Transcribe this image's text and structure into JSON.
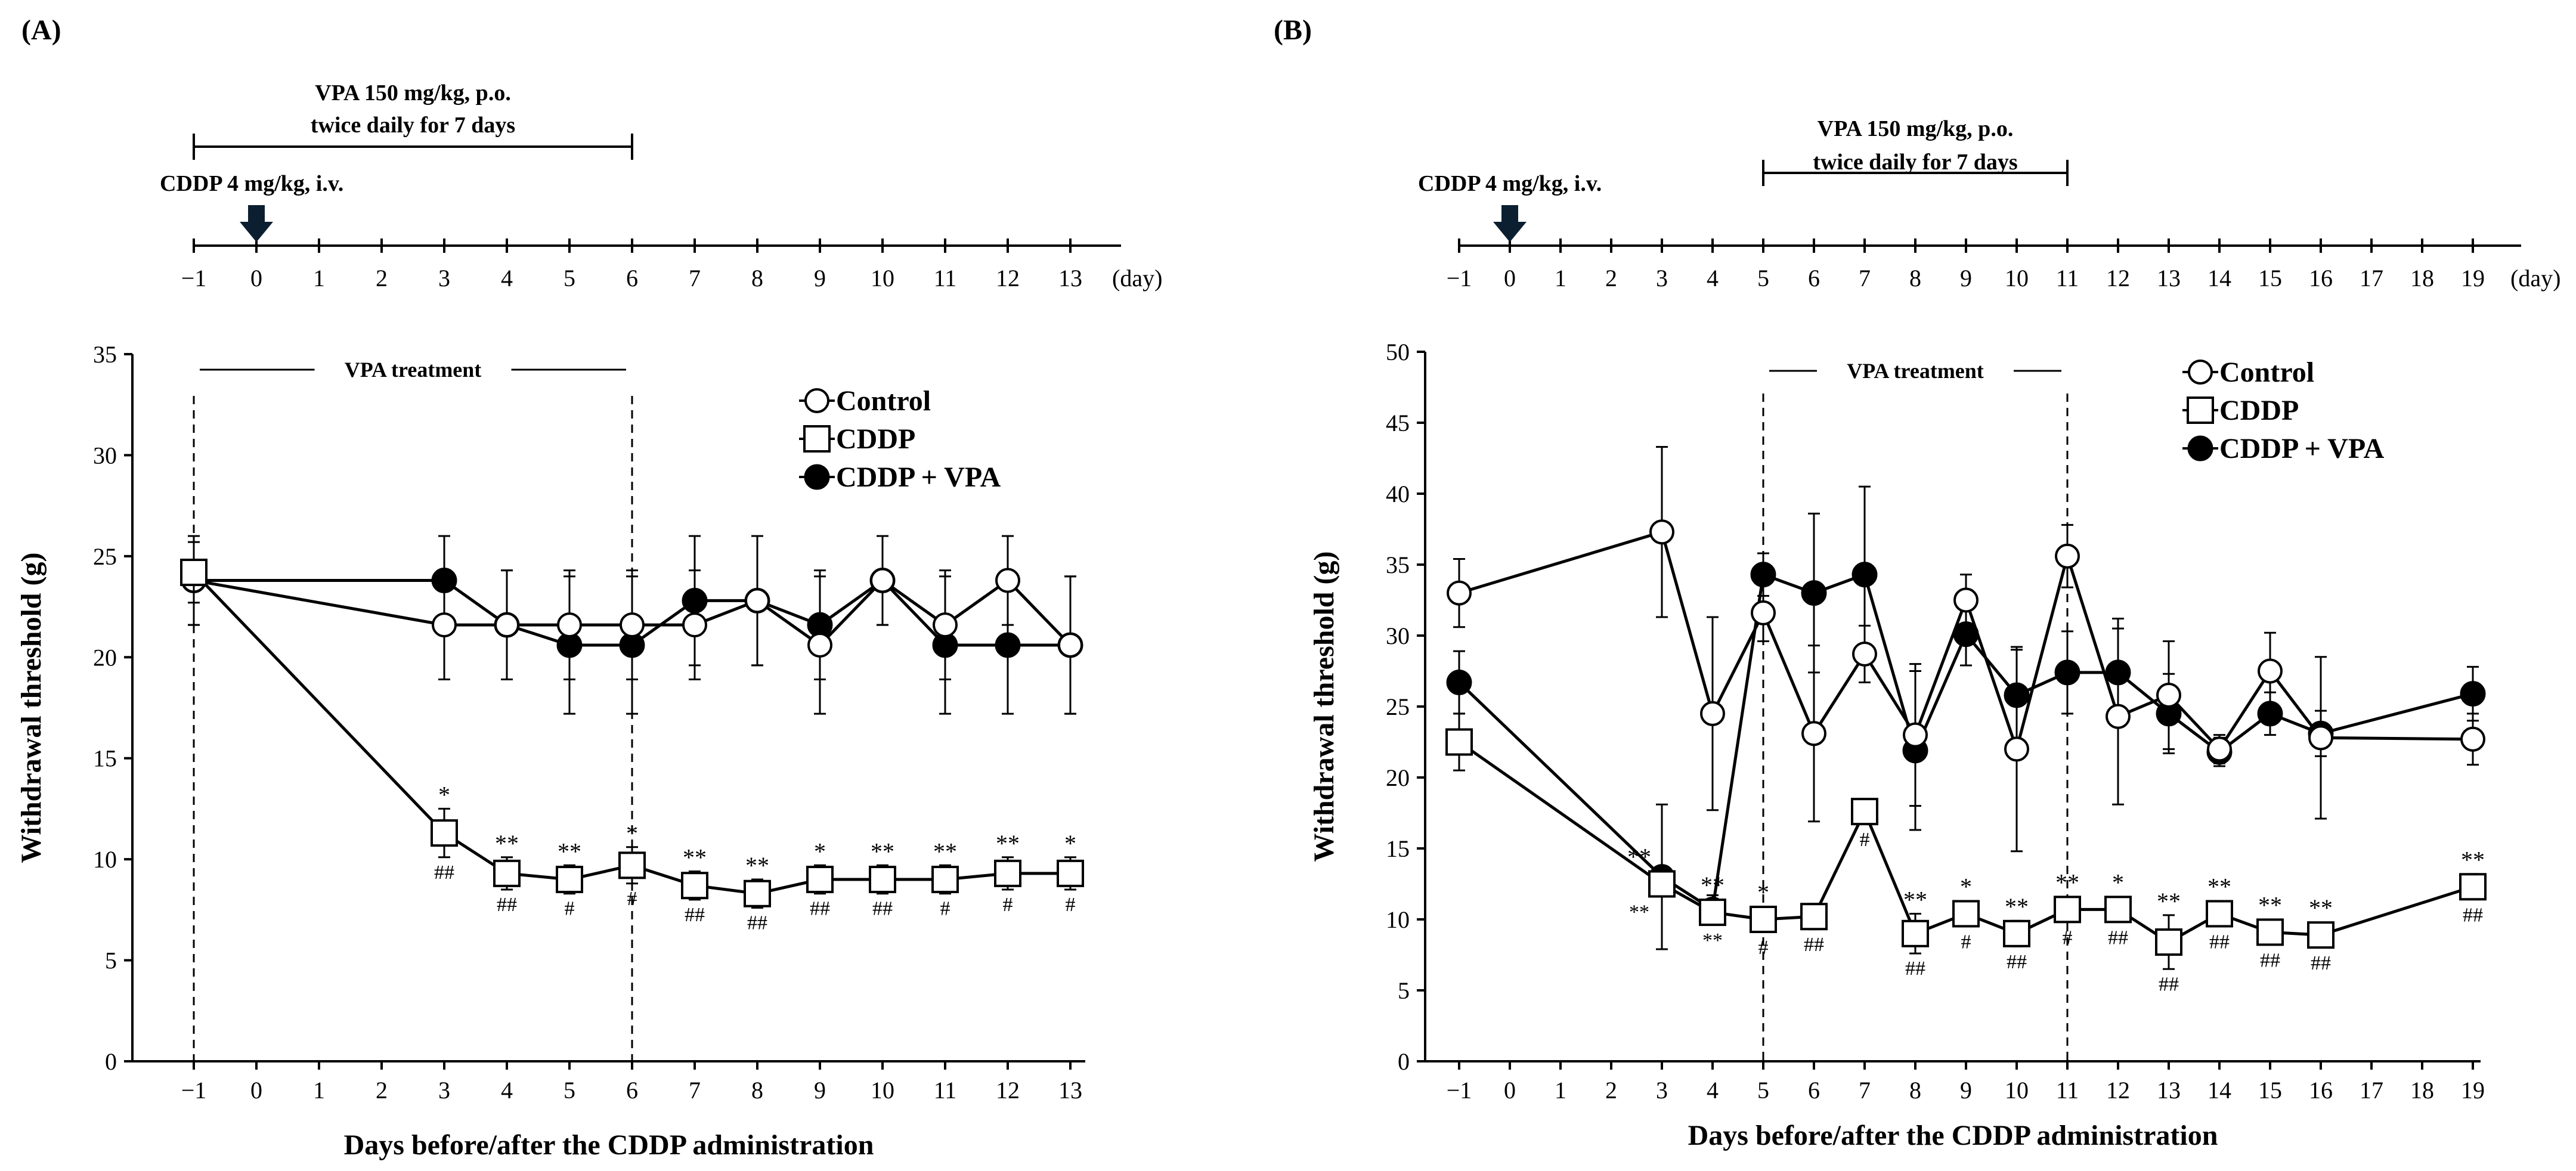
{
  "panels": [
    {
      "id": "A",
      "label": "(A)",
      "timeline": {
        "vpa_text_1": "VPA 150 mg/kg, p.o.",
        "vpa_text_2": "twice daily for 7 days",
        "vpa_range": [
          -1,
          6
        ],
        "cddp_text": "CDDP 4 mg/kg, i.v.",
        "cddp_day": 0,
        "ticks": [
          -1,
          0,
          1,
          2,
          3,
          4,
          5,
          6,
          7,
          8,
          9,
          10,
          11,
          12,
          13
        ],
        "tick_labels": [
          "−1",
          "0",
          "1",
          "2",
          "3",
          "4",
          "5",
          "6",
          "7",
          "8",
          "9",
          "10",
          "11",
          "12",
          "13"
        ],
        "unit": "(day)"
      }
    },
    {
      "id": "B",
      "label": "(B)",
      "timeline": {
        "vpa_text_1": "VPA 150 mg/kg, p.o.",
        "vpa_text_2": "twice daily for 7 days",
        "vpa_range": [
          5,
          11
        ],
        "cddp_text": "CDDP 4 mg/kg, i.v.",
        "cddp_day": 0,
        "ticks": [
          -1,
          0,
          1,
          2,
          3,
          4,
          5,
          6,
          7,
          8,
          9,
          10,
          11,
          12,
          13,
          14,
          15,
          16,
          17,
          18,
          19
        ],
        "tick_labels": [
          "−1",
          "0",
          "1",
          "2",
          "3",
          "4",
          "5",
          "6",
          "7",
          "8",
          "9",
          "10",
          "11",
          "12",
          "13",
          "14",
          "15",
          "16",
          "17",
          "18",
          "19"
        ],
        "unit": "(day)"
      }
    }
  ],
  "chart_data": [
    {
      "type": "line",
      "panel": "A",
      "title": "",
      "xlabel": "Days before/after the CDDP administration",
      "ylabel": "Withdrawal threshold (g)",
      "ylim": [
        0,
        35
      ],
      "yticks": [
        0,
        5,
        10,
        15,
        20,
        25,
        30,
        35
      ],
      "ytick_labels": [
        "0",
        "5",
        "10",
        "15",
        "20",
        "25",
        "30",
        "35"
      ],
      "categories": [
        -1,
        0,
        1,
        2,
        3,
        4,
        5,
        6,
        7,
        8,
        9,
        10,
        11,
        12,
        13
      ],
      "category_labels": [
        "−1",
        "0",
        "1",
        "2",
        "3",
        "4",
        "5",
        "6",
        "7",
        "8",
        "9",
        "10",
        "11",
        "12",
        "13"
      ],
      "vpa_treatment": {
        "label": "VPA treatment",
        "start": -1,
        "end": 6
      },
      "legend": {
        "position": "top-right",
        "entries": [
          "Control",
          "CDDP",
          "CDDP + VPA"
        ]
      },
      "series": [
        {
          "name": "Control",
          "marker": "open-circle",
          "x": [
            -1,
            3,
            4,
            5,
            6,
            7,
            8,
            9,
            10,
            11,
            12,
            13
          ],
          "y": [
            23.8,
            21.6,
            21.6,
            21.6,
            21.6,
            21.6,
            22.8,
            20.6,
            23.8,
            21.6,
            23.8,
            20.6
          ],
          "err": [
            2.2,
            2.7,
            2.7,
            2.7,
            2.7,
            2.7,
            3.2,
            3.4,
            2.2,
            2.7,
            2.2,
            3.4
          ]
        },
        {
          "name": "CDDP",
          "marker": "open-square",
          "x": [
            -1,
            3,
            4,
            5,
            6,
            7,
            8,
            9,
            10,
            11,
            12,
            13
          ],
          "y": [
            24.2,
            11.3,
            9.3,
            9.0,
            9.7,
            8.7,
            8.3,
            9.0,
            9.0,
            9.0,
            9.3,
            9.3
          ],
          "err": [
            1.5,
            1.2,
            0.8,
            0.7,
            0.9,
            0.7,
            0.7,
            0.7,
            0.7,
            0.7,
            0.8,
            0.8
          ]
        },
        {
          "name": "CDDP + VPA",
          "marker": "filled-circle",
          "x": [
            -1,
            3,
            4,
            5,
            6,
            7,
            8,
            9,
            10,
            11,
            12,
            13
          ],
          "y": [
            23.8,
            23.8,
            21.6,
            20.6,
            20.6,
            22.8,
            22.8,
            21.6,
            23.8,
            20.6,
            20.6,
            20.6
          ],
          "err": [
            2.2,
            2.2,
            2.7,
            3.4,
            3.4,
            3.2,
            3.2,
            2.7,
            2.2,
            3.4,
            3.4,
            3.4
          ]
        }
      ],
      "annotations": [
        {
          "x": 3,
          "above": "*",
          "below": "##"
        },
        {
          "x": 4,
          "above": "**",
          "below": "##"
        },
        {
          "x": 5,
          "above": "**",
          "below": "#"
        },
        {
          "x": 6,
          "above": "*",
          "below": "#"
        },
        {
          "x": 7,
          "above": "**",
          "below": "##"
        },
        {
          "x": 8,
          "above": "**",
          "below": "##"
        },
        {
          "x": 9,
          "above": "*",
          "below": "##"
        },
        {
          "x": 10,
          "above": "**",
          "below": "##"
        },
        {
          "x": 11,
          "above": "**",
          "below": "#"
        },
        {
          "x": 12,
          "above": "**",
          "below": "#"
        },
        {
          "x": 13,
          "above": "*",
          "below": "#"
        }
      ]
    },
    {
      "type": "line",
      "panel": "B",
      "title": "",
      "xlabel": "Days before/after the CDDP administration",
      "ylabel": "Withdrawal threshold (g)",
      "ylim": [
        0,
        50
      ],
      "yticks": [
        0,
        5,
        10,
        15,
        20,
        25,
        30,
        35,
        40,
        45,
        50
      ],
      "ytick_labels": [
        "0",
        "5",
        "10",
        "15",
        "20",
        "25",
        "30",
        "35",
        "40",
        "45",
        "50"
      ],
      "categories": [
        -1,
        0,
        1,
        2,
        3,
        4,
        5,
        6,
        7,
        8,
        9,
        10,
        11,
        12,
        13,
        14,
        15,
        16,
        17,
        18,
        19
      ],
      "category_labels": [
        "−1",
        "0",
        "1",
        "2",
        "3",
        "4",
        "5",
        "6",
        "7",
        "8",
        "9",
        "10",
        "11",
        "12",
        "13",
        "14",
        "15",
        "16",
        "17",
        "18",
        "19"
      ],
      "vpa_treatment": {
        "label": "VPA treatment",
        "start": 5,
        "end": 11
      },
      "legend": {
        "position": "top-right",
        "entries": [
          "Control",
          "CDDP",
          "CDDP + VPA"
        ]
      },
      "series": [
        {
          "name": "Control",
          "marker": "open-circle",
          "x": [
            -1,
            3,
            4,
            5,
            6,
            7,
            8,
            9,
            10,
            11,
            12,
            13,
            14,
            15,
            16,
            19
          ],
          "y": [
            33.0,
            37.3,
            24.5,
            31.6,
            23.1,
            28.7,
            23.0,
            32.5,
            22.0,
            35.6,
            24.3,
            25.8,
            22.0,
            27.5,
            22.8,
            22.7
          ],
          "err": [
            2.4,
            6.0,
            6.8,
            2.0,
            6.2,
            2.0,
            5.0,
            1.8,
            7.2,
            2.2,
            6.2,
            3.8,
            1.0,
            2.7,
            5.7,
            1.8
          ]
        },
        {
          "name": "CDDP",
          "marker": "open-square",
          "x": [
            -1,
            3,
            4,
            5,
            6,
            7,
            8,
            9,
            10,
            11,
            12,
            13,
            14,
            15,
            16,
            19
          ],
          "y": [
            22.5,
            12.5,
            10.5,
            10.0,
            10.2,
            17.6,
            9.0,
            10.4,
            9.0,
            10.7,
            10.7,
            8.4,
            10.4,
            9.1,
            8.9,
            12.3
          ],
          "err": [
            2.0,
            0.9,
            0.7,
            0.7,
            0.9,
            0.9,
            1.4,
            0.9,
            0.9,
            0.7,
            0.7,
            1.9,
            0.7,
            0.7,
            0.7,
            0.9
          ]
        },
        {
          "name": "CDDP + VPA",
          "marker": "filled-circle",
          "x": [
            -1,
            3,
            4,
            5,
            6,
            7,
            8,
            9,
            10,
            11,
            12,
            13,
            14,
            15,
            16,
            19
          ],
          "y": [
            26.7,
            13.0,
            10.7,
            34.3,
            33.0,
            34.3,
            21.9,
            30.1,
            25.8,
            27.4,
            27.4,
            24.5,
            21.8,
            24.5,
            23.1,
            25.9
          ],
          "err": [
            2.2,
            5.1,
            1.0,
            1.5,
            5.6,
            6.2,
            5.6,
            2.2,
            3.2,
            2.9,
            3.8,
            2.8,
            1.0,
            1.5,
            1.6,
            1.9
          ]
        }
      ],
      "annotations": [
        {
          "x": 3,
          "above": "**",
          "below": "**",
          "side": "left"
        },
        {
          "x": 4,
          "above": "**",
          "below": "**"
        },
        {
          "x": 5,
          "above": "*",
          "below": "#"
        },
        {
          "x": 6,
          "above": "",
          "below": "##"
        },
        {
          "x": 7,
          "above": "",
          "below": "#"
        },
        {
          "x": 8,
          "above": "**",
          "below": "##"
        },
        {
          "x": 9,
          "above": "*",
          "below": "#"
        },
        {
          "x": 10,
          "above": "**",
          "below": "##"
        },
        {
          "x": 11,
          "above": "**",
          "below": "#"
        },
        {
          "x": 12,
          "above": "*",
          "below": "##"
        },
        {
          "x": 13,
          "above": "**",
          "below": "##"
        },
        {
          "x": 14,
          "above": "**",
          "below": "##"
        },
        {
          "x": 15,
          "above": "**",
          "below": "##"
        },
        {
          "x": 16,
          "above": "**",
          "below": "##"
        },
        {
          "x": 19,
          "above": "**",
          "below": "##"
        }
      ]
    }
  ]
}
